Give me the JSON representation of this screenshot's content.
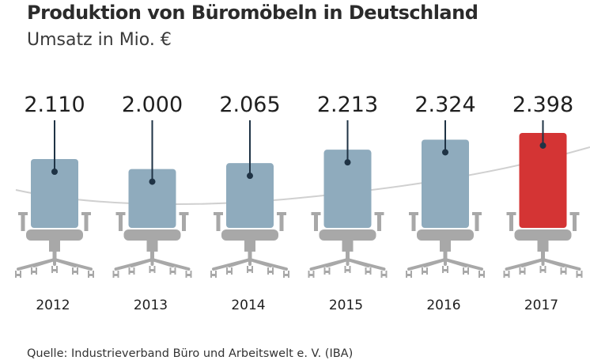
{
  "chart_data": {
    "type": "bar",
    "title": "Produktion von Büromöbeln in Deutschland",
    "subtitle": "Umsatz in Mio. €",
    "categories": [
      "2012",
      "2013",
      "2014",
      "2015",
      "2016",
      "2017"
    ],
    "values_labels": [
      "2.110",
      "2.000",
      "2.065",
      "2.213",
      "2.324",
      "2.398"
    ],
    "values": [
      2110,
      2000,
      2065,
      2213,
      2324,
      2398
    ],
    "highlight_index": 5,
    "ylim": [
      1700,
      2450
    ],
    "grid": false,
    "legend": "none"
  },
  "colors": {
    "bar": "#8fabbd",
    "bar_highlight": "#d43434",
    "chair": "#a8a8a8",
    "trend": "#d0d0d0",
    "line": "#1f3345"
  },
  "icons": {
    "bar_mark": "office-chair-icon"
  },
  "source": "Quelle: Industrieverband Büro und Arbeitswelt e. V. (IBA)"
}
